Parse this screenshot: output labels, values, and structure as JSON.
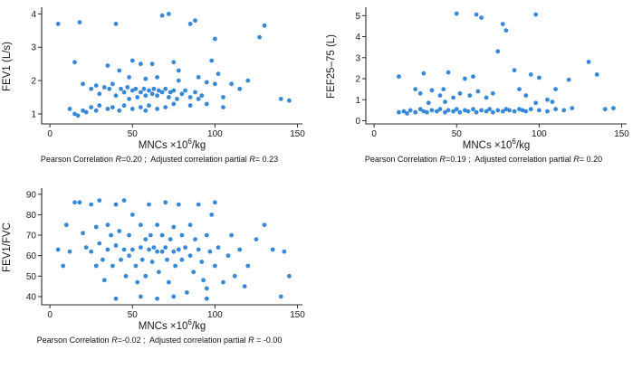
{
  "style": {
    "dot_color": "#3788d8",
    "axis_color": "#2b2b2b"
  },
  "labels": {
    "pearson": "Pearson Correlation",
    "r": "R",
    "partial": "Adjusted correlation partial"
  },
  "charts": [
    {
      "id": "fev1",
      "ylabel": "FEV1 (L/s)",
      "xlabel_pre": "MNCs ×10",
      "xlabel_sup": "6",
      "xlabel_post": "/kg",
      "pearson_eq": "=0.20 ;",
      "partial_eq": "= 0.23",
      "xlim": [
        -5,
        153
      ],
      "ylim": [
        0.7,
        4.2
      ],
      "xticks": [
        0,
        50,
        100,
        150
      ],
      "yticks": [
        1,
        2,
        3,
        4
      ],
      "points": [
        [
          5,
          3.7
        ],
        [
          18,
          3.75
        ],
        [
          40,
          3.7
        ],
        [
          68,
          3.95
        ],
        [
          72,
          4.0
        ],
        [
          85,
          3.7
        ],
        [
          88,
          3.8
        ],
        [
          100,
          3.25
        ],
        [
          127,
          3.3
        ],
        [
          130,
          3.65
        ],
        [
          15,
          2.55
        ],
        [
          35,
          2.45
        ],
        [
          42,
          2.3
        ],
        [
          50,
          2.6
        ],
        [
          55,
          2.5
        ],
        [
          62,
          2.5
        ],
        [
          75,
          2.55
        ],
        [
          78,
          2.3
        ],
        [
          98,
          2.6
        ],
        [
          102,
          2.2
        ],
        [
          120,
          2.0
        ],
        [
          48,
          2.1
        ],
        [
          58,
          2.05
        ],
        [
          65,
          2.1
        ],
        [
          78,
          2.0
        ],
        [
          90,
          2.1
        ],
        [
          20,
          1.9
        ],
        [
          25,
          1.75
        ],
        [
          28,
          1.85
        ],
        [
          30,
          1.6
        ],
        [
          33,
          1.8
        ],
        [
          36,
          1.75
        ],
        [
          38,
          1.9
        ],
        [
          40,
          1.55
        ],
        [
          43,
          1.75
        ],
        [
          45,
          1.65
        ],
        [
          47,
          1.8
        ],
        [
          48,
          1.45
        ],
        [
          50,
          1.7
        ],
        [
          52,
          1.75
        ],
        [
          53,
          1.5
        ],
        [
          55,
          1.65
        ],
        [
          57,
          1.75
        ],
        [
          58,
          1.55
        ],
        [
          60,
          1.7
        ],
        [
          62,
          1.6
        ],
        [
          63,
          1.75
        ],
        [
          65,
          1.55
        ],
        [
          66,
          1.7
        ],
        [
          68,
          1.65
        ],
        [
          70,
          1.75
        ],
        [
          72,
          1.5
        ],
        [
          73,
          1.65
        ],
        [
          75,
          1.7
        ],
        [
          77,
          1.45
        ],
        [
          80,
          1.6
        ],
        [
          82,
          1.7
        ],
        [
          85,
          1.5
        ],
        [
          88,
          1.65
        ],
        [
          90,
          1.45
        ],
        [
          92,
          1.55
        ],
        [
          95,
          1.95
        ],
        [
          100,
          1.9
        ],
        [
          105,
          1.5
        ],
        [
          110,
          1.9
        ],
        [
          115,
          1.75
        ],
        [
          12,
          1.15
        ],
        [
          15,
          1.0
        ],
        [
          17,
          0.95
        ],
        [
          20,
          1.1
        ],
        [
          22,
          1.05
        ],
        [
          25,
          1.2
        ],
        [
          28,
          1.1
        ],
        [
          30,
          1.25
        ],
        [
          35,
          1.15
        ],
        [
          38,
          1.2
        ],
        [
          42,
          1.1
        ],
        [
          45,
          1.25
        ],
        [
          50,
          1.15
        ],
        [
          55,
          1.2
        ],
        [
          58,
          1.1
        ],
        [
          60,
          1.25
        ],
        [
          65,
          1.15
        ],
        [
          70,
          1.2
        ],
        [
          75,
          1.3
        ],
        [
          85,
          1.25
        ],
        [
          95,
          1.3
        ],
        [
          105,
          1.2
        ],
        [
          140,
          1.45
        ],
        [
          145,
          1.4
        ]
      ]
    },
    {
      "id": "fef2575",
      "ylabel": "FEF25–75 (L)",
      "xlabel_pre": "MNCs ×10",
      "xlabel_sup": "6",
      "xlabel_post": "/kg",
      "pearson_eq": "=0.19 ;",
      "partial_eq": "= 0.20",
      "xlim": [
        -5,
        153
      ],
      "ylim": [
        -0.15,
        5.4
      ],
      "xticks": [
        0,
        50,
        100,
        150
      ],
      "yticks": [
        0,
        1,
        2,
        3,
        4,
        5
      ],
      "points": [
        [
          50,
          5.1
        ],
        [
          62,
          5.05
        ],
        [
          65,
          4.9
        ],
        [
          98,
          5.05
        ],
        [
          78,
          4.6
        ],
        [
          80,
          4.3
        ],
        [
          75,
          3.3
        ],
        [
          130,
          2.8
        ],
        [
          135,
          2.2
        ],
        [
          15,
          2.1
        ],
        [
          30,
          2.25
        ],
        [
          45,
          2.3
        ],
        [
          55,
          2.0
        ],
        [
          60,
          2.1
        ],
        [
          85,
          2.4
        ],
        [
          95,
          2.2
        ],
        [
          100,
          2.05
        ],
        [
          118,
          1.95
        ],
        [
          25,
          1.5
        ],
        [
          28,
          1.3
        ],
        [
          35,
          1.45
        ],
        [
          40,
          1.2
        ],
        [
          42,
          1.5
        ],
        [
          48,
          1.1
        ],
        [
          52,
          1.3
        ],
        [
          58,
          1.2
        ],
        [
          63,
          1.4
        ],
        [
          68,
          1.1
        ],
        [
          72,
          1.3
        ],
        [
          88,
          1.5
        ],
        [
          92,
          1.2
        ],
        [
          105,
          1.0
        ],
        [
          110,
          1.5
        ],
        [
          33,
          0.85
        ],
        [
          43,
          0.9
        ],
        [
          98,
          0.85
        ],
        [
          108,
          0.9
        ],
        [
          15,
          0.4
        ],
        [
          18,
          0.45
        ],
        [
          20,
          0.35
        ],
        [
          22,
          0.5
        ],
        [
          25,
          0.4
        ],
        [
          28,
          0.55
        ],
        [
          30,
          0.45
        ],
        [
          32,
          0.4
        ],
        [
          35,
          0.5
        ],
        [
          38,
          0.45
        ],
        [
          40,
          0.55
        ],
        [
          43,
          0.4
        ],
        [
          45,
          0.5
        ],
        [
          48,
          0.45
        ],
        [
          50,
          0.55
        ],
        [
          52,
          0.4
        ],
        [
          55,
          0.5
        ],
        [
          57,
          0.45
        ],
        [
          60,
          0.55
        ],
        [
          62,
          0.4
        ],
        [
          65,
          0.5
        ],
        [
          68,
          0.45
        ],
        [
          70,
          0.55
        ],
        [
          72,
          0.4
        ],
        [
          75,
          0.5
        ],
        [
          78,
          0.45
        ],
        [
          80,
          0.55
        ],
        [
          82,
          0.5
        ],
        [
          85,
          0.45
        ],
        [
          88,
          0.55
        ],
        [
          90,
          0.5
        ],
        [
          92,
          0.45
        ],
        [
          95,
          0.55
        ],
        [
          100,
          0.5
        ],
        [
          105,
          0.45
        ],
        [
          110,
          0.55
        ],
        [
          115,
          0.5
        ],
        [
          120,
          0.6
        ],
        [
          140,
          0.55
        ],
        [
          145,
          0.6
        ]
      ]
    },
    {
      "id": "fev1fvc",
      "ylabel": "FEV1/FVC",
      "xlabel_pre": "MNCs ×10",
      "xlabel_sup": "6",
      "xlabel_post": "/kg",
      "pearson_eq": "=-0.02 ;",
      "partial_eq": " = -0.00",
      "xlim": [
        -5,
        153
      ],
      "ylim": [
        36,
        93
      ],
      "xticks": [
        0,
        50,
        100,
        150
      ],
      "yticks": [
        40,
        50,
        60,
        70,
        80,
        90
      ],
      "points": [
        [
          5,
          63
        ],
        [
          8,
          55
        ],
        [
          10,
          75
        ],
        [
          12,
          62
        ],
        [
          15,
          86
        ],
        [
          18,
          86
        ],
        [
          20,
          71
        ],
        [
          22,
          64
        ],
        [
          25,
          85
        ],
        [
          25,
          62
        ],
        [
          28,
          74
        ],
        [
          28,
          55
        ],
        [
          30,
          87
        ],
        [
          30,
          66
        ],
        [
          32,
          58
        ],
        [
          33,
          48
        ],
        [
          35,
          75
        ],
        [
          35,
          63
        ],
        [
          37,
          70
        ],
        [
          38,
          55
        ],
        [
          40,
          85
        ],
        [
          40,
          65
        ],
        [
          42,
          72
        ],
        [
          43,
          58
        ],
        [
          45,
          87
        ],
        [
          45,
          63
        ],
        [
          46,
          50
        ],
        [
          48,
          70
        ],
        [
          48,
          60
        ],
        [
          50,
          80
        ],
        [
          50,
          63
        ],
        [
          52,
          55
        ],
        [
          53,
          47
        ],
        [
          55,
          75
        ],
        [
          55,
          64
        ],
        [
          56,
          58
        ],
        [
          58,
          68
        ],
        [
          58,
          50
        ],
        [
          60,
          85
        ],
        [
          60,
          63
        ],
        [
          61,
          70
        ],
        [
          62,
          57
        ],
        [
          63,
          64
        ],
        [
          65,
          75
        ],
        [
          65,
          62
        ],
        [
          66,
          52
        ],
        [
          68,
          70
        ],
        [
          68,
          62
        ],
        [
          70,
          86
        ],
        [
          70,
          64
        ],
        [
          71,
          58
        ],
        [
          72,
          47
        ],
        [
          73,
          68
        ],
        [
          75,
          74
        ],
        [
          75,
          62
        ],
        [
          76,
          55
        ],
        [
          78,
          85
        ],
        [
          78,
          63
        ],
        [
          80,
          70
        ],
        [
          80,
          58
        ],
        [
          82,
          64
        ],
        [
          83,
          42
        ],
        [
          85,
          75
        ],
        [
          85,
          60
        ],
        [
          87,
          52
        ],
        [
          88,
          68
        ],
        [
          90,
          85
        ],
        [
          90,
          63
        ],
        [
          92,
          57
        ],
        [
          93,
          48
        ],
        [
          95,
          70
        ],
        [
          95,
          44
        ],
        [
          97,
          62
        ],
        [
          98,
          80
        ],
        [
          100,
          86
        ],
        [
          100,
          55
        ],
        [
          102,
          64
        ],
        [
          105,
          47
        ],
        [
          108,
          60
        ],
        [
          110,
          70
        ],
        [
          112,
          50
        ],
        [
          115,
          63
        ],
        [
          118,
          45
        ],
        [
          120,
          55
        ],
        [
          125,
          68
        ],
        [
          130,
          75
        ],
        [
          135,
          63
        ],
        [
          140,
          40
        ],
        [
          142,
          62
        ],
        [
          145,
          50
        ],
        [
          40,
          39
        ],
        [
          55,
          40
        ],
        [
          65,
          39
        ],
        [
          75,
          40
        ],
        [
          95,
          39
        ]
      ]
    }
  ],
  "chart_data": [
    {
      "type": "scatter",
      "title": "",
      "xlabel": "MNCs ×10^6/kg",
      "ylabel": "FEV1 (L/s)",
      "xlim": [
        0,
        150
      ],
      "ylim": [
        1,
        4
      ],
      "grid": false,
      "annotation": "Pearson Correlation R=0.20 ; Adjusted correlation partial R= 0.23"
    },
    {
      "type": "scatter",
      "title": "",
      "xlabel": "MNCs ×10^6/kg",
      "ylabel": "FEF25–75 (L)",
      "xlim": [
        0,
        150
      ],
      "ylim": [
        0,
        5
      ],
      "grid": false,
      "annotation": "Pearson Correlation R=0.19 ; Adjusted correlation partial R= 0.20"
    },
    {
      "type": "scatter",
      "title": "",
      "xlabel": "MNCs ×10^6/kg",
      "ylabel": "FEV1/FVC",
      "xlim": [
        0,
        150
      ],
      "ylim": [
        40,
        90
      ],
      "grid": false,
      "annotation": "Pearson Correlation R=-0.02 ; Adjusted correlation partial R = -0.00"
    }
  ]
}
